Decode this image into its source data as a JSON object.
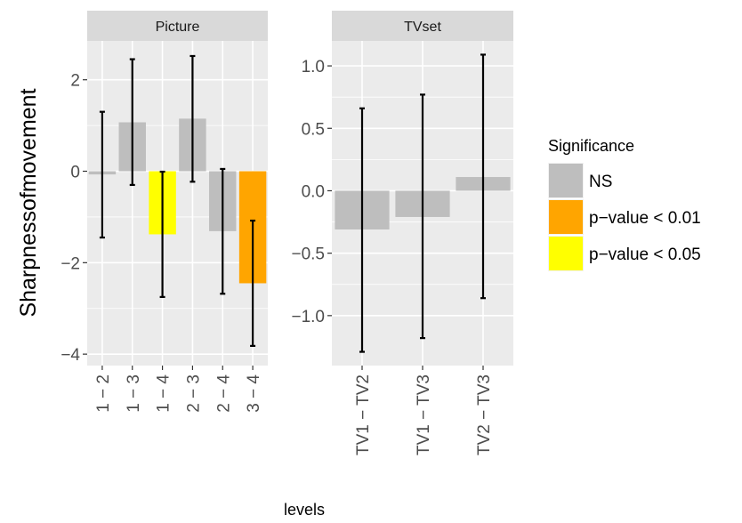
{
  "chart_data": {
    "type": "bar",
    "ylabel": "Sharpnessofmovement",
    "xlabel": "levels",
    "legend": {
      "title": "Significance",
      "position": "right",
      "entries": [
        {
          "label": "NS",
          "color": "#bebebe"
        },
        {
          "label": "p−value < 0.01",
          "color": "#ffa500"
        },
        {
          "label": "p−value < 0.05",
          "color": "#ffff00"
        }
      ]
    },
    "panels": [
      {
        "name": "Picture",
        "ylim": [
          -4.25,
          2.85
        ],
        "yticks": [
          -4,
          -2,
          0,
          2
        ],
        "ytick_labels": [
          "−4",
          "−2",
          "0",
          "2"
        ],
        "categories": [
          "1 − 2",
          "1 − 3",
          "1 − 4",
          "2 − 3",
          "2 − 4",
          "3 − 4"
        ],
        "values": [
          -0.07,
          1.07,
          -1.38,
          1.15,
          -1.31,
          -2.45
        ],
        "lower": [
          -1.45,
          -0.3,
          -2.75,
          -0.23,
          -2.68,
          -3.82
        ],
        "upper": [
          1.3,
          2.45,
          -0.01,
          2.52,
          0.05,
          -1.08
        ],
        "significance": [
          "NS",
          "NS",
          "p−value < 0.05",
          "NS",
          "NS",
          "p−value < 0.01"
        ]
      },
      {
        "name": "TVset",
        "ylim": [
          -1.4,
          1.2
        ],
        "yticks": [
          -1.0,
          -0.5,
          0.0,
          0.5,
          1.0
        ],
        "ytick_labels": [
          "−1.0",
          "−0.5",
          "0.0",
          "0.5",
          "1.0"
        ],
        "categories": [
          "TV1 − TV2",
          "TV1 − TV3",
          "TV2 − TV3"
        ],
        "values": [
          -0.31,
          -0.21,
          0.11
        ],
        "lower": [
          -1.29,
          -1.18,
          -0.86
        ],
        "upper": [
          0.66,
          0.77,
          1.09
        ],
        "significance": [
          "NS",
          "NS",
          "NS"
        ]
      }
    ]
  }
}
